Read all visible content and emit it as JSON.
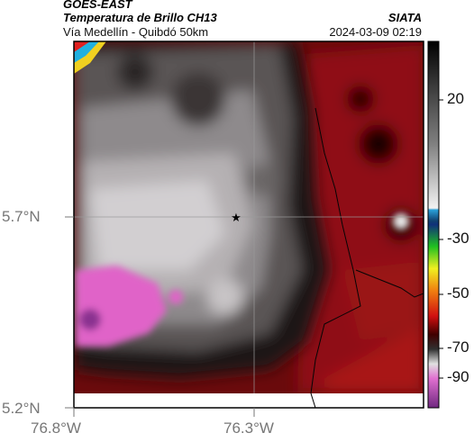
{
  "header": {
    "satellite": "GOES-EAST",
    "product": "Temperatura de Brillo CH13",
    "region": "Vía Medellín - Quibdó 50km",
    "org": "SIATA",
    "datetime": "2024-03-09 02:19"
  },
  "axes": {
    "lat_labels": [
      "5.7°N",
      "5.2°N"
    ],
    "lon_labels": [
      "76.8°W",
      "76.3°W"
    ]
  },
  "colorbar": {
    "ticks": [
      "20",
      "-30",
      "-50",
      "-70",
      "-90"
    ]
  },
  "marker": {
    "symbol": "★"
  },
  "colors": {
    "warm_red": "#8a0d10",
    "cold_pink": "#e060c8",
    "cold_purple": "#8a3090",
    "gray_mid": "#8f8f8f",
    "black": "#050505"
  }
}
